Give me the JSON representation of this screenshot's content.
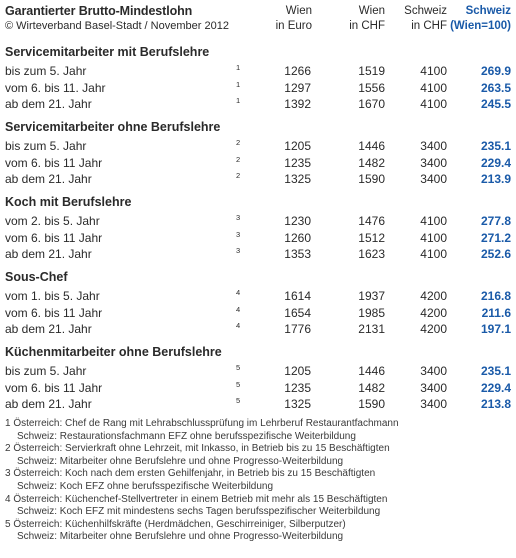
{
  "header": {
    "title": "Garantierter Brutto-Mindestlohn",
    "copyright": "© Wirteverband Basel-Stadt / November 2012",
    "columns": [
      {
        "line1": "Wien",
        "line2": "in Euro"
      },
      {
        "line1": "Wien",
        "line2": "in CHF"
      },
      {
        "line1": "Schweiz",
        "line2": "in CHF"
      },
      {
        "line1": "Schweiz",
        "line2": "(Wien=100)"
      }
    ]
  },
  "sections": [
    {
      "title": "Servicemitarbeiter mit Berufslehre",
      "rows": [
        {
          "label": "bis zum 5. Jahr",
          "note": "1",
          "eur": "1266",
          "chf_wien": "1519",
          "chf_ch": "4100",
          "index": "269.9"
        },
        {
          "label": "vom 6. bis 11. Jahr",
          "note": "1",
          "eur": "1297",
          "chf_wien": "1556",
          "chf_ch": "4100",
          "index": "263.5"
        },
        {
          "label": "ab dem 21. Jahr",
          "note": "1",
          "eur": "1392",
          "chf_wien": "1670",
          "chf_ch": "4100",
          "index": "245.5"
        }
      ]
    },
    {
      "title": "Servicemitarbeiter ohne Berufslehre",
      "rows": [
        {
          "label": "bis zum 5. Jahr",
          "note": "2",
          "eur": "1205",
          "chf_wien": "1446",
          "chf_ch": "3400",
          "index": "235.1"
        },
        {
          "label": "vom 6. bis 11 Jahr",
          "note": "2",
          "eur": "1235",
          "chf_wien": "1482",
          "chf_ch": "3400",
          "index": "229.4"
        },
        {
          "label": "ab dem 21. Jahr",
          "note": "2",
          "eur": "1325",
          "chf_wien": "1590",
          "chf_ch": "3400",
          "index": "213.9"
        }
      ]
    },
    {
      "title": "Koch mit Berufslehre",
      "rows": [
        {
          "label": "vom 2. bis 5. Jahr",
          "note": "3",
          "eur": "1230",
          "chf_wien": "1476",
          "chf_ch": "4100",
          "index": "277.8"
        },
        {
          "label": "vom 6. bis 11 Jahr",
          "note": "3",
          "eur": "1260",
          "chf_wien": "1512",
          "chf_ch": "4100",
          "index": "271.2"
        },
        {
          "label": "ab dem 21. Jahr",
          "note": "3",
          "eur": "1353",
          "chf_wien": "1623",
          "chf_ch": "4100",
          "index": "252.6"
        }
      ]
    },
    {
      "title": "Sous-Chef",
      "rows": [
        {
          "label": "vom 1. bis 5. Jahr",
          "note": "4",
          "eur": "1614",
          "chf_wien": "1937",
          "chf_ch": "4200",
          "index": "216.8"
        },
        {
          "label": "vom 6. bis 11 Jahr",
          "note": "4",
          "eur": "1654",
          "chf_wien": "1985",
          "chf_ch": "4200",
          "index": "211.6"
        },
        {
          "label": "ab dem 21. Jahr",
          "note": "4",
          "eur": "1776",
          "chf_wien": "2131",
          "chf_ch": "4200",
          "index": "197.1"
        }
      ]
    },
    {
      "title": "Küchenmitarbeiter ohne Berufslehre",
      "rows": [
        {
          "label": "bis zum 5. Jahr",
          "note": "5",
          "eur": "1205",
          "chf_wien": "1446",
          "chf_ch": "3400",
          "index": "235.1"
        },
        {
          "label": "vom 6. bis 11 Jahr",
          "note": "5",
          "eur": "1235",
          "chf_wien": "1482",
          "chf_ch": "3400",
          "index": "229.4"
        },
        {
          "label": "ab dem 21. Jahr",
          "note": "5",
          "eur": "1325",
          "chf_wien": "1590",
          "chf_ch": "3400",
          "index": "213.8"
        }
      ]
    }
  ],
  "footnotes": [
    {
      "num": "1",
      "line1": "Österreich: Chef de Rang mit Lehrabschlussprüfung im Lehrberuf Restaurantfachmann",
      "line2": "Schweiz: Restaurationsfachmann EFZ ohne berufsspezifische Weiterbildung"
    },
    {
      "num": "2",
      "line1": "Österreich: Servierkraft ohne Lehrzeit, mit Inkasso, in Betrieb bis zu 15 Beschäftigten",
      "line2": "Schweiz: Mitarbeiter ohne Berufslehre und ohne Progresso-Weiterbildung"
    },
    {
      "num": "3",
      "line1": "Österreich: Koch nach dem ersten Gehilfenjahr, in Betrieb bis zu 15 Beschäftigten",
      "line2": "Schweiz: Koch EFZ ohne berufsspezifische Weiterbildung"
    },
    {
      "num": "4",
      "line1": "Österreich: Küchenchef-Stellvertreter in einem Betrieb mit mehr als 15 Beschäftigten",
      "line2": "Schweiz: Koch EFZ mit mindestens sechs Tagen berufsspezifischer Weiterbildung"
    },
    {
      "num": "5",
      "line1": "Österreich: Küchenhilfskräfte (Herdmädchen, Geschirreiniger, Silberputzer)",
      "line2": "Schweiz: Mitarbeiter ohne Berufslehre und ohne Progresso-Weiterbildung"
    }
  ],
  "colors": {
    "index_accent": "#1a5aa8",
    "text": "#2a2a2a"
  }
}
